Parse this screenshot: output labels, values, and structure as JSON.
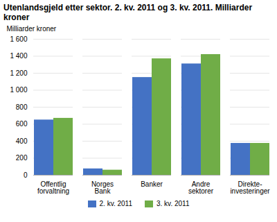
{
  "chart_data": {
    "type": "bar",
    "title": "Utenlandsgjeld etter sektor. 2. kv. 2011 og 3. kv. 2011. Milliarder kroner",
    "ylabel": "Milliarder kroner",
    "categories": [
      "Offentlig\nforvaltning",
      "Norges\nBank",
      "Banker",
      "Andre\nsektorer",
      "Direkte-\ninvesteringer"
    ],
    "series": [
      {
        "name": "2. kv. 2011",
        "color": "#4472C4",
        "values": [
          650,
          75,
          1150,
          1310,
          375
        ]
      },
      {
        "name": "3. kv. 2011",
        "color": "#70AD47",
        "values": [
          670,
          60,
          1370,
          1420,
          375
        ]
      }
    ],
    "ylim": [
      0,
      1600
    ],
    "yticks": [
      0,
      200,
      400,
      600,
      800,
      {
        "value": 1000,
        "label": "1 000"
      },
      {
        "value": 1200,
        "label": "1 200"
      },
      {
        "value": 1400,
        "label": "1 400"
      },
      {
        "value": 1600,
        "label": "1 600"
      }
    ],
    "grid": true,
    "legend": "bottom"
  }
}
